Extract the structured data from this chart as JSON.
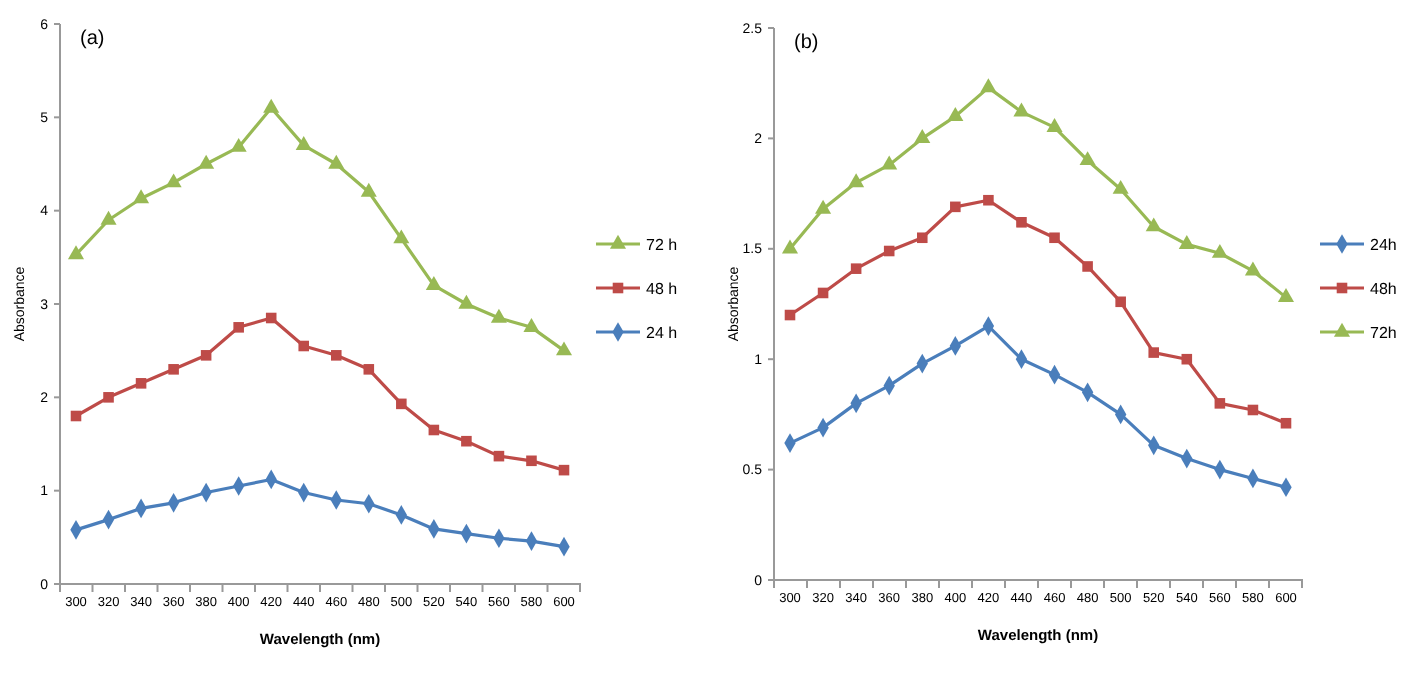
{
  "chart_data": [
    {
      "type": "line",
      "title": "(a)",
      "xlabel": "Wavelength (nm)",
      "ylabel": "Absorbance",
      "categories": [
        "300",
        "320",
        "340",
        "360",
        "380",
        "400",
        "420",
        "440",
        "460",
        "480",
        "500",
        "520",
        "540",
        "560",
        "580",
        "600"
      ],
      "ylim": [
        0,
        6
      ],
      "yticks": [
        0,
        1,
        2,
        3,
        4,
        5,
        6
      ],
      "legend": "right",
      "grid": false,
      "series": [
        {
          "name": "72 h",
          "color": "#98b954",
          "marker": "triangle",
          "values": [
            3.53,
            3.9,
            4.13,
            4.3,
            4.5,
            4.68,
            5.1,
            4.7,
            4.5,
            4.2,
            3.7,
            3.2,
            3.0,
            2.85,
            2.75,
            2.5
          ]
        },
        {
          "name": "48 h",
          "color": "#be4b48",
          "marker": "square",
          "values": [
            1.8,
            2.0,
            2.15,
            2.3,
            2.45,
            2.75,
            2.85,
            2.55,
            2.45,
            2.3,
            1.93,
            1.65,
            1.53,
            1.37,
            1.32,
            1.22
          ]
        },
        {
          "name": "24 h",
          "color": "#4a7ebb",
          "marker": "diamond",
          "values": [
            0.58,
            0.69,
            0.81,
            0.87,
            0.98,
            1.05,
            1.12,
            0.98,
            0.9,
            0.86,
            0.74,
            0.59,
            0.54,
            0.49,
            0.46,
            0.4
          ]
        }
      ]
    },
    {
      "type": "line",
      "title": "(b)",
      "xlabel": "Wavelength (nm)",
      "ylabel": "Absorbance",
      "categories": [
        "300",
        "320",
        "340",
        "360",
        "380",
        "400",
        "420",
        "440",
        "460",
        "480",
        "500",
        "520",
        "540",
        "560",
        "580",
        "600"
      ],
      "ylim": [
        0,
        2.5
      ],
      "yticks": [
        0,
        0.5,
        1,
        1.5,
        2,
        2.5
      ],
      "legend": "right",
      "grid": false,
      "series": [
        {
          "name": "24h",
          "color": "#4a7ebb",
          "marker": "diamond",
          "values": [
            0.62,
            0.69,
            0.8,
            0.88,
            0.98,
            1.06,
            1.15,
            1.0,
            0.93,
            0.85,
            0.75,
            0.61,
            0.55,
            0.5,
            0.46,
            0.42
          ]
        },
        {
          "name": "48h",
          "color": "#be4b48",
          "marker": "square",
          "values": [
            1.2,
            1.3,
            1.41,
            1.49,
            1.55,
            1.69,
            1.72,
            1.62,
            1.55,
            1.42,
            1.26,
            1.03,
            1.0,
            0.8,
            0.77,
            0.71
          ]
        },
        {
          "name": "72h",
          "color": "#98b954",
          "marker": "triangle",
          "values": [
            1.5,
            1.68,
            1.8,
            1.88,
            2.0,
            2.1,
            2.23,
            2.12,
            2.05,
            1.9,
            1.77,
            1.6,
            1.52,
            1.48,
            1.4,
            1.28
          ]
        }
      ]
    }
  ]
}
